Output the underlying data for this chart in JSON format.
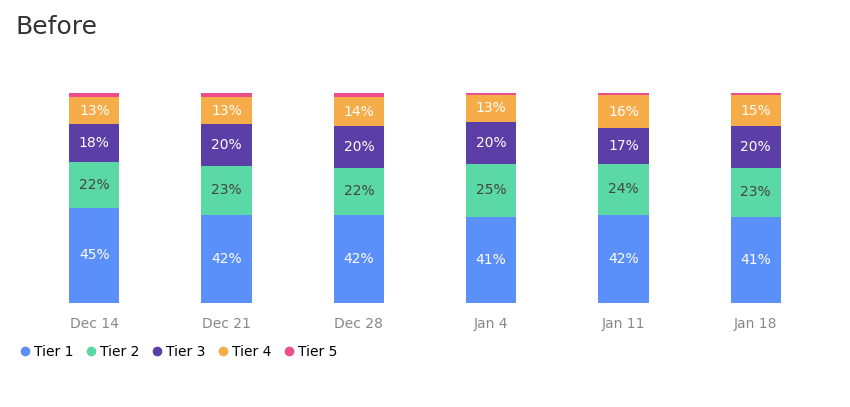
{
  "title": "Before",
  "categories": [
    "Dec 14",
    "Dec 21",
    "Dec 28",
    "Jan 4",
    "Jan 11",
    "Jan 18"
  ],
  "tiers": [
    "Tier 1",
    "Tier 2",
    "Tier 3",
    "Tier 4",
    "Tier 5"
  ],
  "colors": {
    "Tier 1": "#5B8FF9",
    "Tier 2": "#5AD8A6",
    "Tier 3": "#5B3EA6",
    "Tier 4": "#F6AD49",
    "Tier 5": "#EE4D8B"
  },
  "values": {
    "Tier 1": [
      45,
      42,
      42,
      41,
      42,
      41
    ],
    "Tier 2": [
      22,
      23,
      22,
      25,
      24,
      23
    ],
    "Tier 3": [
      18,
      20,
      20,
      20,
      17,
      20
    ],
    "Tier 4": [
      13,
      13,
      14,
      13,
      16,
      15
    ],
    "Tier 5": [
      2,
      2,
      2,
      1,
      1,
      1
    ]
  },
  "tier2_label_color": "#444444",
  "background_color": "#ffffff",
  "title_fontsize": 18,
  "label_fontsize": 10,
  "tick_fontsize": 10,
  "bar_width": 0.38,
  "legend_fontsize": 10,
  "ylim": [
    0,
    120
  ],
  "title_color": "#333333"
}
